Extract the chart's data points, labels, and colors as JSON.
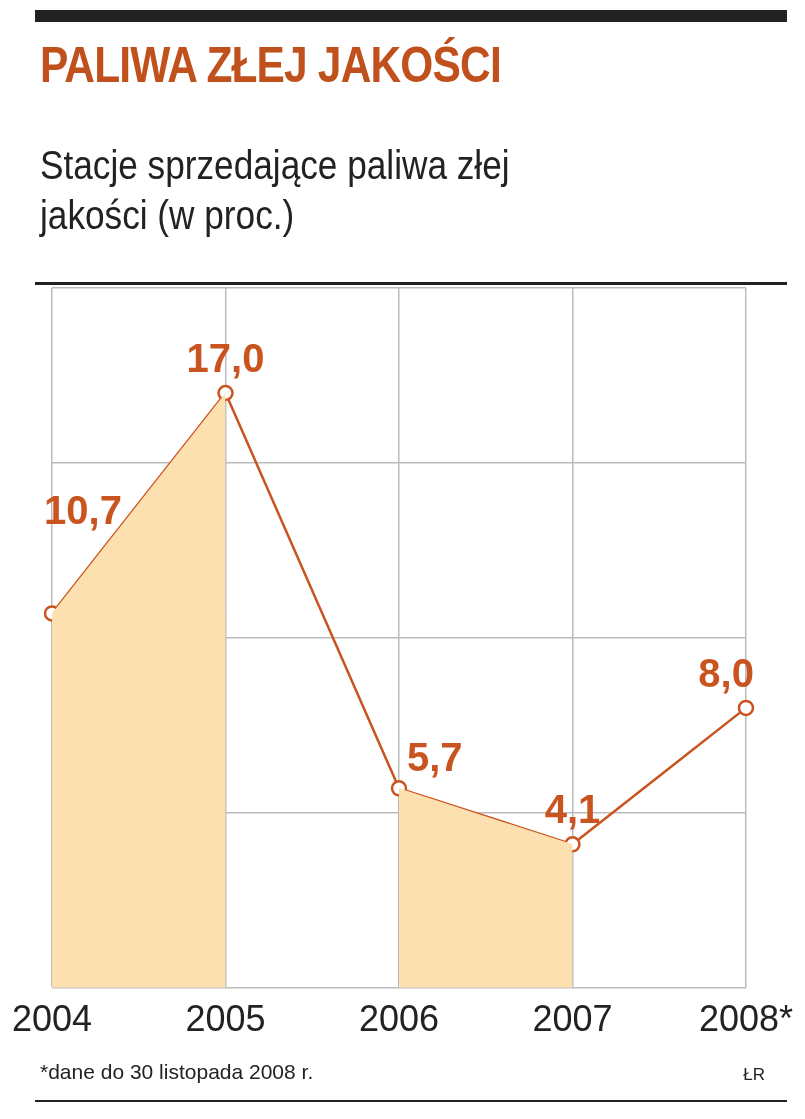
{
  "chart_data": {
    "type": "line",
    "title": "PALIWA ZŁEJ JAKOŚCI",
    "subtitle": "Stacje sprzedające paliwa złej jakości (w proc.)",
    "categories": [
      "2004",
      "2005",
      "2006",
      "2007",
      "2008*"
    ],
    "series": [
      {
        "type": "area",
        "color": "#fde0b0",
        "marker": "none",
        "values": [
          10.7,
          17.0,
          null,
          null,
          null
        ]
      },
      {
        "type": "area",
        "color": "#fde0b0",
        "marker": "none",
        "values": [
          null,
          null,
          5.7,
          4.1,
          null
        ]
      },
      {
        "color": "#c9541f",
        "values": [
          10.7,
          17.0,
          5.7,
          4.1,
          8.0
        ],
        "value_labels": [
          "10,7",
          "17,0",
          "5,7",
          "4,1",
          "8,0"
        ]
      }
    ],
    "tick_labels": "x",
    "grid": true,
    "legend": false,
    "marker": "circle",
    "line_style": "solid",
    "annotations": [
      "*dane do 30 listopada 2008 r.",
      "ŁR"
    ]
  }
}
